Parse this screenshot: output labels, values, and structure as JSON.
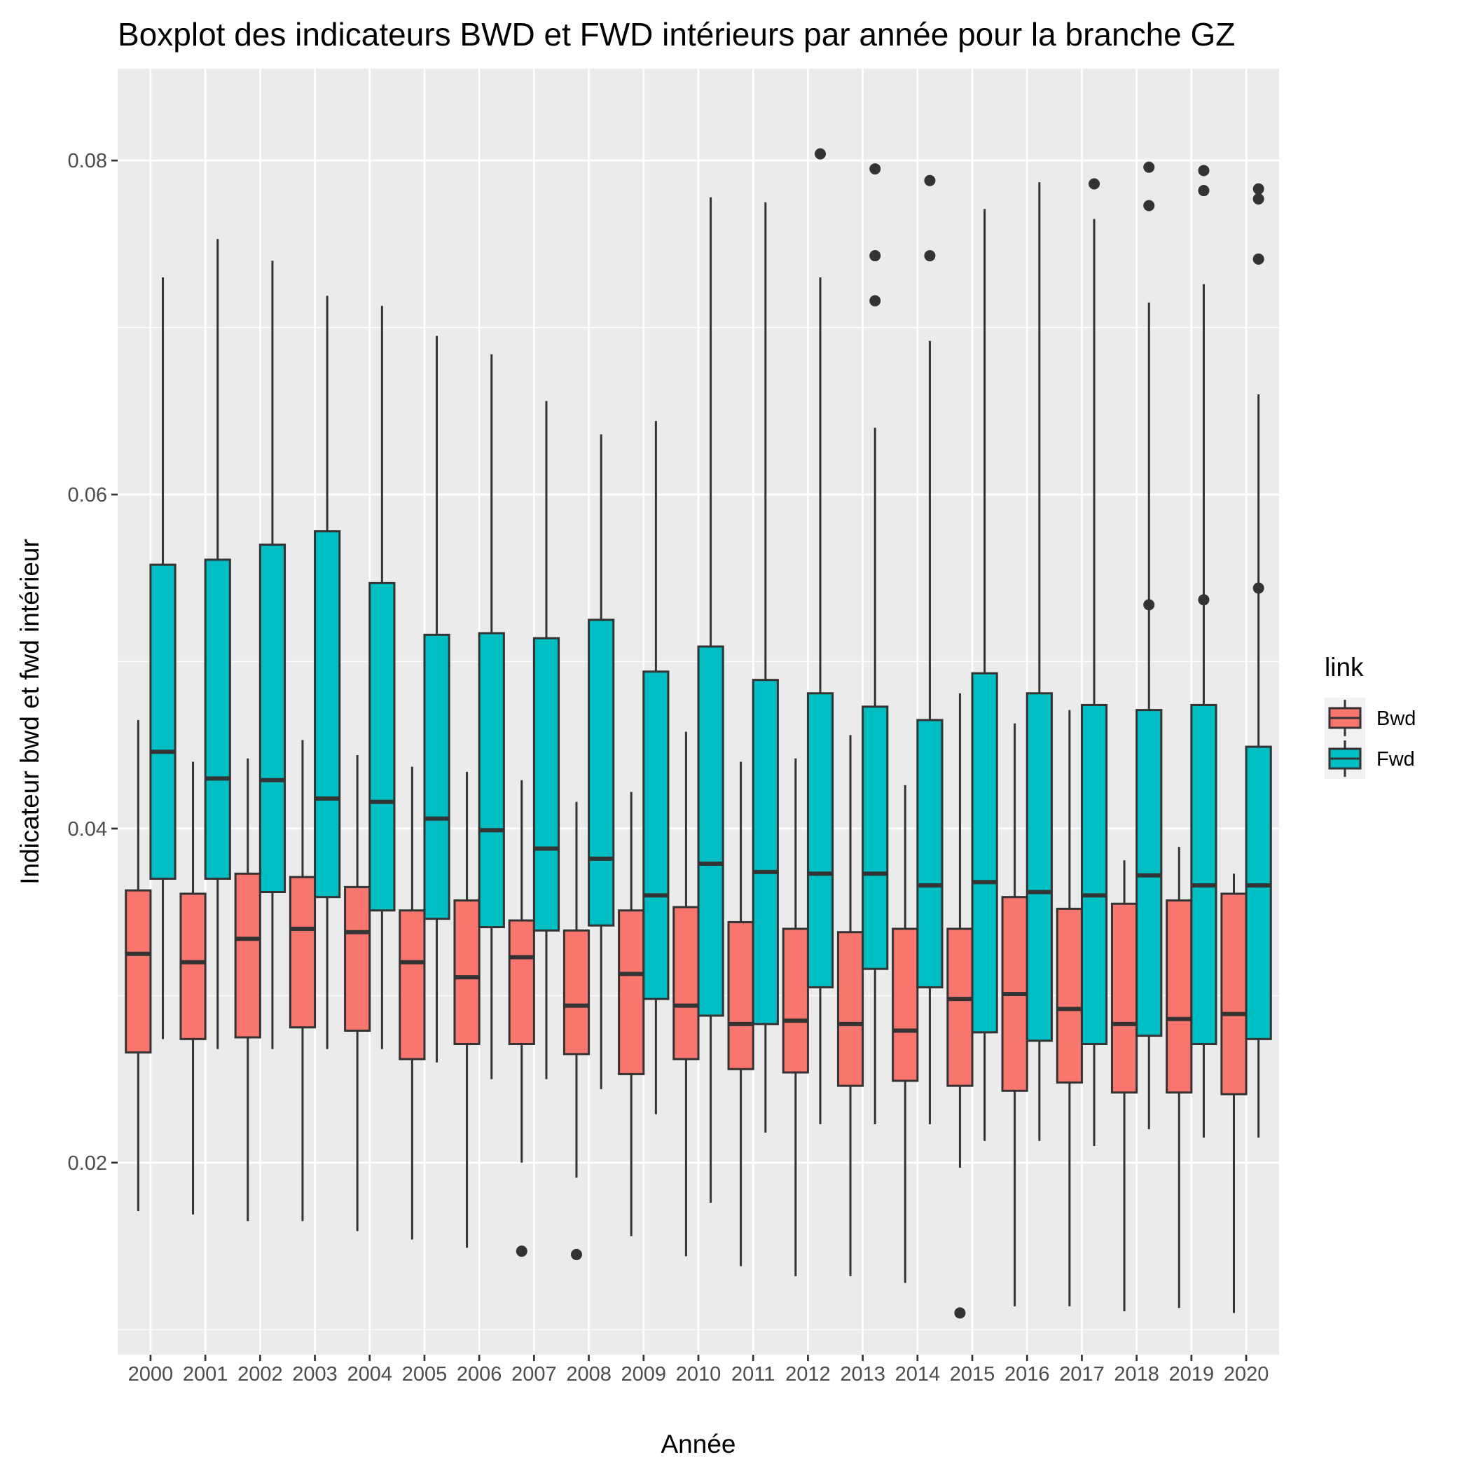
{
  "chart_data": {
    "type": "boxplot",
    "title": "Boxplot des indicateurs BWD et FWD intérieurs par année pour la branche GZ",
    "xlabel": "Année",
    "ylabel": "Indicateur bwd et fwd intérieur",
    "ylim": [
      0.0085,
      0.0855
    ],
    "yticks": [
      "0.02",
      "0.04",
      "0.06",
      "0.08"
    ],
    "yticks_values": [
      0.02,
      0.04,
      0.06,
      0.08
    ],
    "grid": true,
    "legend": {
      "title": "link",
      "position": "right"
    },
    "categories": [
      "2000",
      "2001",
      "2002",
      "2003",
      "2004",
      "2005",
      "2006",
      "2007",
      "2008",
      "2009",
      "2010",
      "2011",
      "2012",
      "2013",
      "2014",
      "2015",
      "2016",
      "2017",
      "2018",
      "2019",
      "2020"
    ],
    "series": [
      {
        "name": "Bwd",
        "color": "#F8766D",
        "boxes": [
          {
            "lower": 0.0171,
            "q1": 0.0266,
            "median": 0.0325,
            "q3": 0.0363,
            "upper": 0.0465,
            "outliers": []
          },
          {
            "lower": 0.0169,
            "q1": 0.0274,
            "median": 0.032,
            "q3": 0.0361,
            "upper": 0.044,
            "outliers": []
          },
          {
            "lower": 0.0165,
            "q1": 0.0275,
            "median": 0.0334,
            "q3": 0.0373,
            "upper": 0.0442,
            "outliers": []
          },
          {
            "lower": 0.0165,
            "q1": 0.0281,
            "median": 0.034,
            "q3": 0.0371,
            "upper": 0.0453,
            "outliers": []
          },
          {
            "lower": 0.0159,
            "q1": 0.0279,
            "median": 0.0338,
            "q3": 0.0365,
            "upper": 0.0444,
            "outliers": []
          },
          {
            "lower": 0.0154,
            "q1": 0.0262,
            "median": 0.032,
            "q3": 0.0351,
            "upper": 0.0437,
            "outliers": []
          },
          {
            "lower": 0.0149,
            "q1": 0.0271,
            "median": 0.0311,
            "q3": 0.0357,
            "upper": 0.0434,
            "outliers": []
          },
          {
            "lower": 0.02,
            "q1": 0.0271,
            "median": 0.0323,
            "q3": 0.0345,
            "upper": 0.0429,
            "outliers": [
              0.0147
            ]
          },
          {
            "lower": 0.0191,
            "q1": 0.0265,
            "median": 0.0294,
            "q3": 0.0339,
            "upper": 0.0416,
            "outliers": [
              0.0145
            ]
          },
          {
            "lower": 0.0156,
            "q1": 0.0253,
            "median": 0.0313,
            "q3": 0.0351,
            "upper": 0.0422,
            "outliers": []
          },
          {
            "lower": 0.0144,
            "q1": 0.0262,
            "median": 0.0294,
            "q3": 0.0353,
            "upper": 0.0458,
            "outliers": []
          },
          {
            "lower": 0.0138,
            "q1": 0.0256,
            "median": 0.0283,
            "q3": 0.0344,
            "upper": 0.044,
            "outliers": []
          },
          {
            "lower": 0.0132,
            "q1": 0.0254,
            "median": 0.0285,
            "q3": 0.034,
            "upper": 0.0442,
            "outliers": []
          },
          {
            "lower": 0.0132,
            "q1": 0.0246,
            "median": 0.0283,
            "q3": 0.0338,
            "upper": 0.0456,
            "outliers": []
          },
          {
            "lower": 0.0128,
            "q1": 0.0249,
            "median": 0.0279,
            "q3": 0.034,
            "upper": 0.0426,
            "outliers": []
          },
          {
            "lower": 0.0197,
            "q1": 0.0246,
            "median": 0.0298,
            "q3": 0.034,
            "upper": 0.0481,
            "outliers": [
              0.011
            ]
          },
          {
            "lower": 0.0114,
            "q1": 0.0243,
            "median": 0.0301,
            "q3": 0.0359,
            "upper": 0.0463,
            "outliers": []
          },
          {
            "lower": 0.0114,
            "q1": 0.0248,
            "median": 0.0292,
            "q3": 0.0352,
            "upper": 0.0471,
            "outliers": []
          },
          {
            "lower": 0.0111,
            "q1": 0.0242,
            "median": 0.0283,
            "q3": 0.0355,
            "upper": 0.0381,
            "outliers": []
          },
          {
            "lower": 0.0113,
            "q1": 0.0242,
            "median": 0.0286,
            "q3": 0.0357,
            "upper": 0.0389,
            "outliers": []
          },
          {
            "lower": 0.011,
            "q1": 0.0241,
            "median": 0.0289,
            "q3": 0.0361,
            "upper": 0.0373,
            "outliers": []
          }
        ]
      },
      {
        "name": "Fwd",
        "color": "#00BFC4",
        "boxes": [
          {
            "lower": 0.0274,
            "q1": 0.037,
            "median": 0.0446,
            "q3": 0.0558,
            "upper": 0.073,
            "outliers": []
          },
          {
            "lower": 0.0268,
            "q1": 0.037,
            "median": 0.043,
            "q3": 0.0561,
            "upper": 0.0753,
            "outliers": []
          },
          {
            "lower": 0.0268,
            "q1": 0.0362,
            "median": 0.0429,
            "q3": 0.057,
            "upper": 0.074,
            "outliers": []
          },
          {
            "lower": 0.0268,
            "q1": 0.0359,
            "median": 0.0418,
            "q3": 0.0578,
            "upper": 0.0719,
            "outliers": []
          },
          {
            "lower": 0.0268,
            "q1": 0.0351,
            "median": 0.0416,
            "q3": 0.0547,
            "upper": 0.0713,
            "outliers": []
          },
          {
            "lower": 0.026,
            "q1": 0.0346,
            "median": 0.0406,
            "q3": 0.0516,
            "upper": 0.0695,
            "outliers": []
          },
          {
            "lower": 0.025,
            "q1": 0.0341,
            "median": 0.0399,
            "q3": 0.0517,
            "upper": 0.0684,
            "outliers": []
          },
          {
            "lower": 0.025,
            "q1": 0.0339,
            "median": 0.0388,
            "q3": 0.0514,
            "upper": 0.0656,
            "outliers": []
          },
          {
            "lower": 0.0244,
            "q1": 0.0342,
            "median": 0.0382,
            "q3": 0.0525,
            "upper": 0.0636,
            "outliers": []
          },
          {
            "lower": 0.0229,
            "q1": 0.0298,
            "median": 0.036,
            "q3": 0.0494,
            "upper": 0.0644,
            "outliers": []
          },
          {
            "lower": 0.0176,
            "q1": 0.0288,
            "median": 0.0379,
            "q3": 0.0509,
            "upper": 0.0778,
            "outliers": []
          },
          {
            "lower": 0.0218,
            "q1": 0.0283,
            "median": 0.0374,
            "q3": 0.0489,
            "upper": 0.0775,
            "outliers": []
          },
          {
            "lower": 0.0223,
            "q1": 0.0305,
            "median": 0.0373,
            "q3": 0.0481,
            "upper": 0.073,
            "outliers": [
              0.0804
            ]
          },
          {
            "lower": 0.0223,
            "q1": 0.0316,
            "median": 0.0373,
            "q3": 0.0473,
            "upper": 0.064,
            "outliers": [
              0.0795,
              0.0743,
              0.0716
            ]
          },
          {
            "lower": 0.0223,
            "q1": 0.0305,
            "median": 0.0366,
            "q3": 0.0465,
            "upper": 0.0692,
            "outliers": [
              0.0788,
              0.0743
            ]
          },
          {
            "lower": 0.0213,
            "q1": 0.0278,
            "median": 0.0368,
            "q3": 0.0493,
            "upper": 0.0771,
            "outliers": []
          },
          {
            "lower": 0.0213,
            "q1": 0.0273,
            "median": 0.0362,
            "q3": 0.0481,
            "upper": 0.0787,
            "outliers": []
          },
          {
            "lower": 0.021,
            "q1": 0.0271,
            "median": 0.036,
            "q3": 0.0474,
            "upper": 0.0765,
            "outliers": [
              0.0786
            ]
          },
          {
            "lower": 0.022,
            "q1": 0.0276,
            "median": 0.0372,
            "q3": 0.0471,
            "upper": 0.0715,
            "outliers": [
              0.0796,
              0.0773,
              0.0534
            ]
          },
          {
            "lower": 0.0215,
            "q1": 0.0271,
            "median": 0.0366,
            "q3": 0.0474,
            "upper": 0.0726,
            "outliers": [
              0.0794,
              0.0782,
              0.0537
            ]
          },
          {
            "lower": 0.0215,
            "q1": 0.0274,
            "median": 0.0366,
            "q3": 0.0449,
            "upper": 0.066,
            "outliers": [
              0.0783,
              0.0777,
              0.0741,
              0.0544
            ]
          }
        ]
      }
    ]
  }
}
